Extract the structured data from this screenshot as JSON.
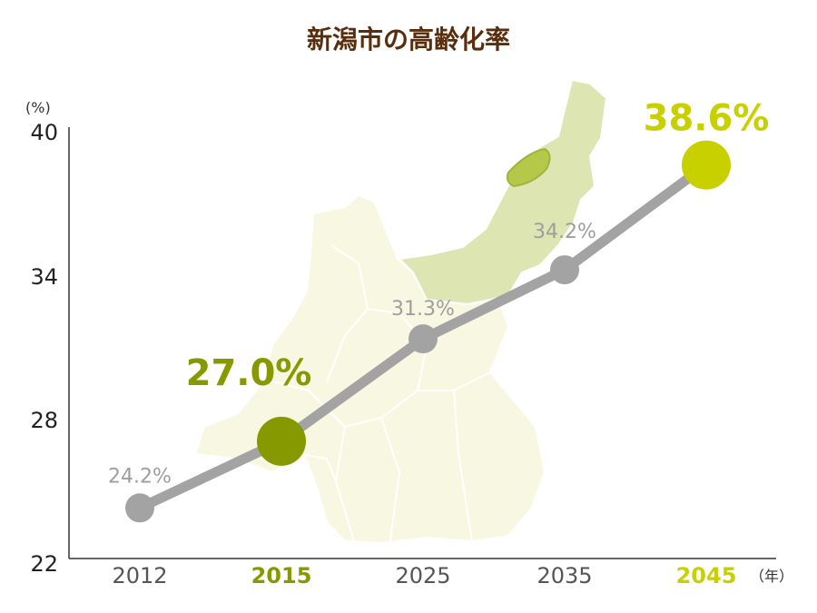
{
  "colors": {
    "title": "#5a2d0c",
    "line": "#a3a3a3",
    "dark_green": "#869a00",
    "yellow_green": "#c8d000",
    "gray_label": "#9e9e9e",
    "map_light": "#f8f7e1",
    "map_niigata": "#dde6b3",
    "map_border": "#ffffff",
    "map_city": "#b5c84a"
  },
  "chart_data": {
    "type": "line",
    "title": "新潟市の高齢化率",
    "y_unit": "(%)",
    "x_unit": "（年）",
    "ylim": [
      22,
      40
    ],
    "yticks": [
      "40",
      "34",
      "28",
      "22"
    ],
    "grid": false,
    "categories": [
      "2012",
      "2015",
      "2025",
      "2035",
      "2045"
    ],
    "values": [
      24.2,
      27.0,
      31.3,
      34.2,
      38.6
    ],
    "point_labels": [
      "24.2%",
      "27.0%",
      "31.3%",
      "34.2%",
      "38.6%"
    ],
    "highlight": [
      "none",
      "dark",
      "none",
      "none",
      "bright"
    ]
  }
}
